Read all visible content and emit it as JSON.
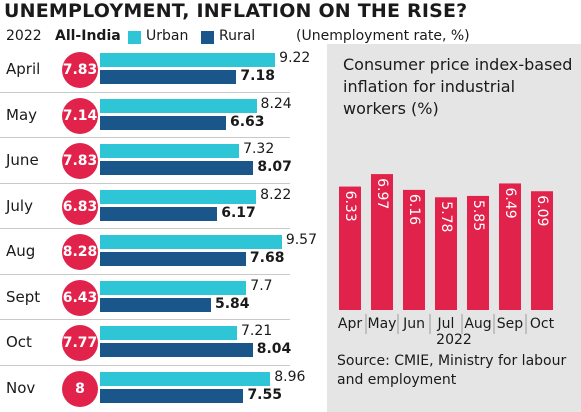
{
  "header": {
    "title": "UNEMPLOYMENT, INFLATION ON THE RISE?",
    "year_label": "2022",
    "region_label": "All-India",
    "legend_urban": "Urban",
    "legend_rural": "Rural",
    "unit_note": "(Unemployment rate, %)"
  },
  "colors": {
    "urban": "#2ec6d6",
    "rural": "#1a5689",
    "all_india": "#e1224a",
    "inflation": "#e1224a",
    "panel_bg": "#e5e5e5"
  },
  "chart_data": [
    {
      "type": "bar",
      "orientation": "horizontal",
      "title": "UNEMPLOYMENT, INFLATION ON THE RISE?",
      "unit": "(Unemployment rate, %)",
      "categories": [
        "April",
        "May",
        "June",
        "July",
        "Aug",
        "Sept",
        "Oct",
        "Nov"
      ],
      "all_india": [
        "7.83",
        "7.14",
        "7.83",
        "6.83",
        "8.28",
        "6.43",
        "7.77",
        "8"
      ],
      "series": [
        {
          "name": "Urban",
          "values": [
            9.22,
            8.24,
            7.32,
            8.22,
            9.57,
            7.7,
            7.21,
            8.96
          ],
          "labels": [
            "9.22",
            "8.24",
            "7.32",
            "8.22",
            "9.57",
            "7.7",
            "7.21",
            "8.96"
          ]
        },
        {
          "name": "Rural",
          "values": [
            7.18,
            6.63,
            8.07,
            6.17,
            7.68,
            5.84,
            8.04,
            7.55
          ],
          "labels": [
            "7.18",
            "6.63",
            "8.07",
            "6.17",
            "7.68",
            "5.84",
            "8.04",
            "7.55"
          ]
        }
      ],
      "legend": "top"
    },
    {
      "type": "bar",
      "orientation": "vertical",
      "title": "Consumer price index-based inflation for industrial workers (%)",
      "categories": [
        "Apr",
        "May",
        "Jun",
        "Jul",
        "Aug",
        "Sep",
        "Oct"
      ],
      "values": [
        6.33,
        6.97,
        6.16,
        5.78,
        5.85,
        6.49,
        6.09
      ],
      "labels": [
        "6.33",
        "6.97",
        "6.16",
        "5.78",
        "5.85",
        "6.49",
        "6.09"
      ],
      "xlabel": "2022",
      "source": "Source: CMIE, Ministry for labour and employment"
    }
  ]
}
